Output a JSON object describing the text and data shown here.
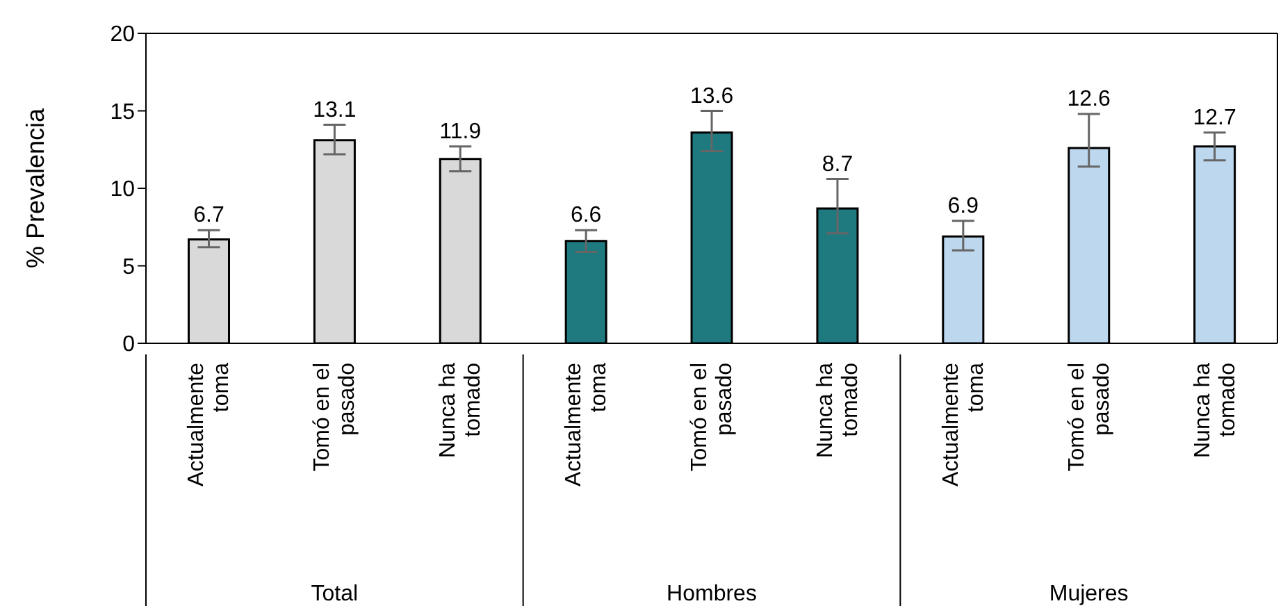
{
  "chart_data": {
    "type": "bar",
    "ylabel": "% Prevalencia",
    "categories": [
      "Actualmente toma",
      "Tomó en el pasado",
      "Nunca ha tomado",
      "Actualmente toma",
      "Tomó en el pasado",
      "Nunca ha tomado",
      "Actualmente toma",
      "Tomó en el pasado",
      "Nunca ha tomado"
    ],
    "values": [
      6.7,
      13.1,
      11.9,
      6.6,
      13.6,
      8.7,
      6.9,
      12.6,
      12.7
    ],
    "colors": [
      "#d9d9d9",
      "#d9d9d9",
      "#d9d9d9",
      "#1f7a80",
      "#1f7a80",
      "#1f7a80",
      "#bdd7ee",
      "#bdd7ee",
      "#bdd7ee"
    ],
    "errors": [
      [
        6.2,
        7.3
      ],
      [
        12.2,
        14.1
      ],
      [
        11.1,
        12.7
      ],
      [
        5.9,
        7.3
      ],
      [
        12.4,
        15.0
      ],
      [
        7.1,
        10.6
      ],
      [
        6.0,
        7.9
      ],
      [
        11.4,
        14.8
      ],
      [
        11.8,
        13.6
      ]
    ],
    "annotations": [
      "Total",
      "Hombres",
      "Mujeres"
    ],
    "data_labels": true,
    "ylim": [
      0,
      20
    ],
    "yticks": [
      0,
      5,
      10,
      15,
      20
    ]
  }
}
